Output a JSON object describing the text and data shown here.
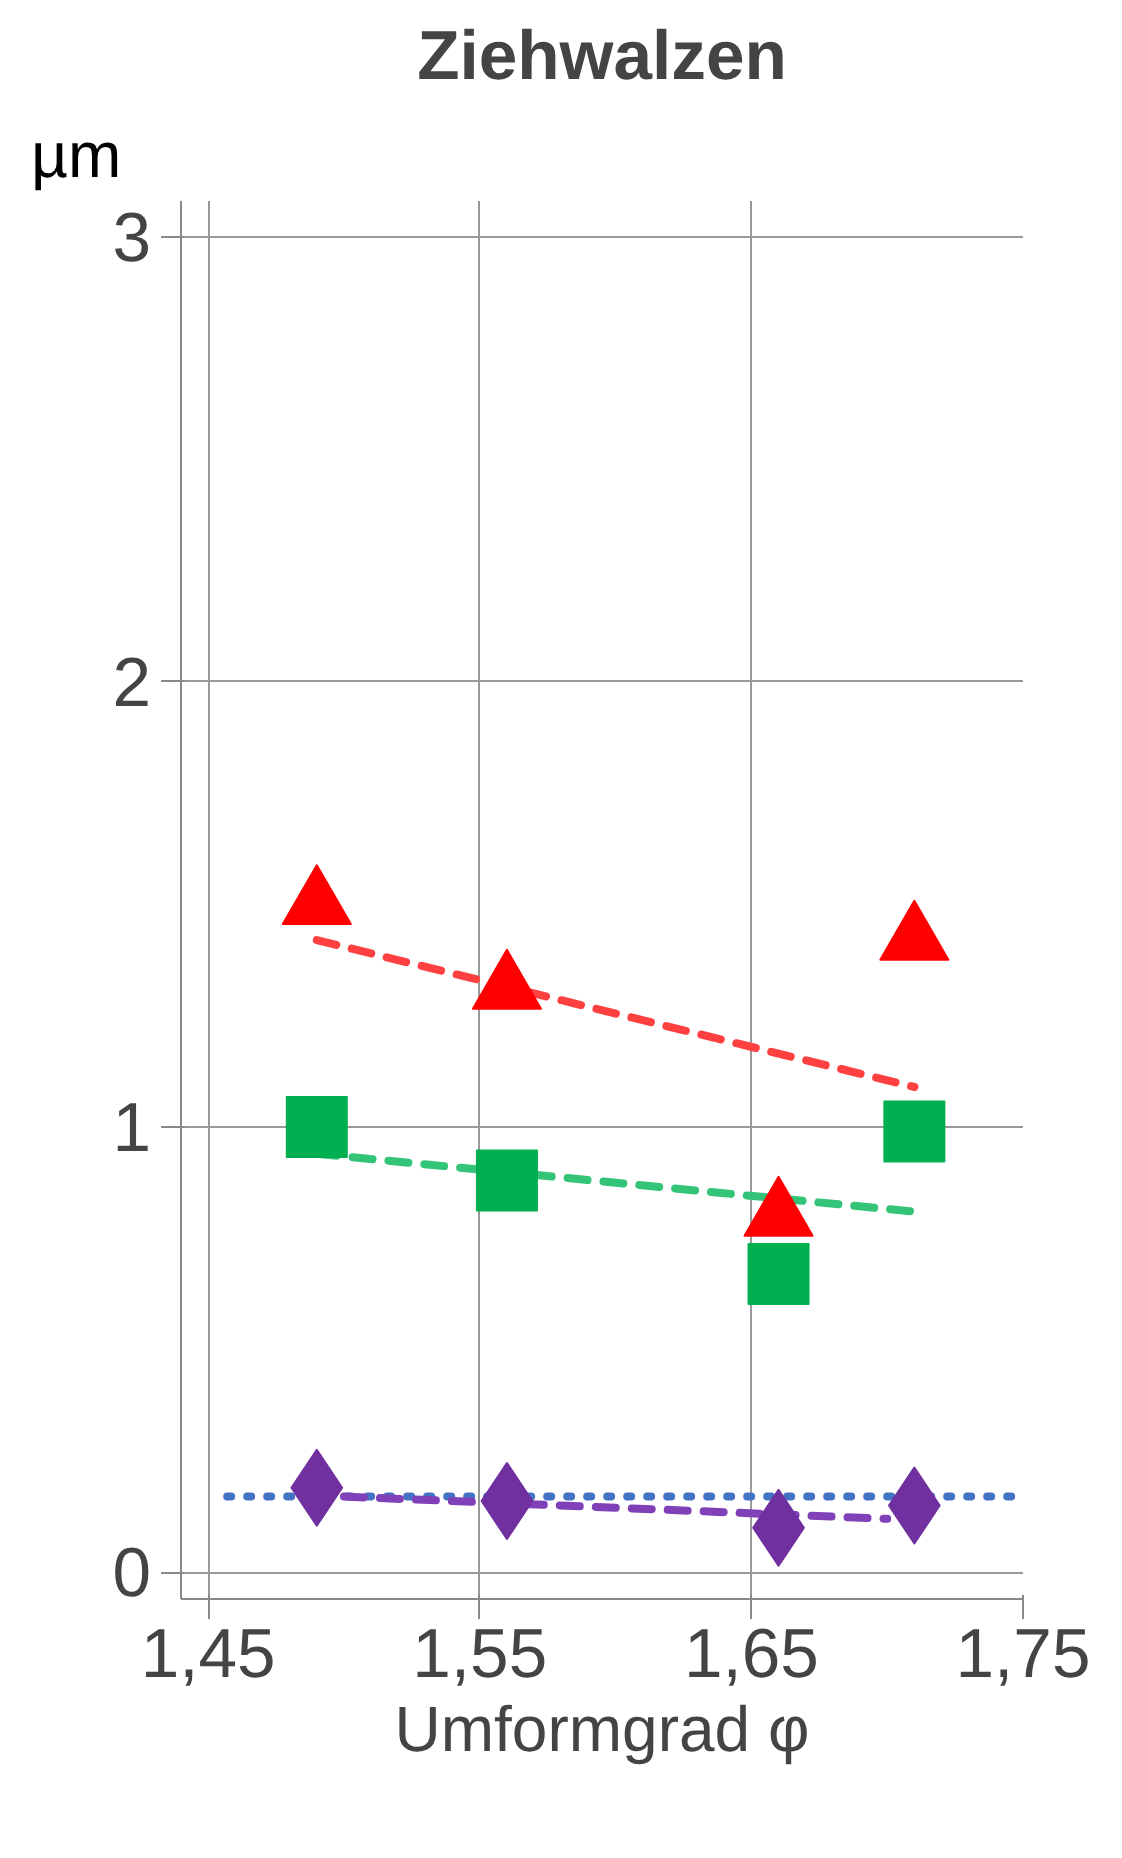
{
  "chart_data": {
    "type": "scatter",
    "title": "Ziehwalzen",
    "ylabel": "µm",
    "xlabel": "Umformgrad φ",
    "xlim": [
      1.44,
      1.75
    ],
    "ylim": [
      -0.06,
      3.08
    ],
    "xticks": [
      {
        "value": 1.45,
        "label": "1,45"
      },
      {
        "value": 1.55,
        "label": "1,55"
      },
      {
        "value": 1.65,
        "label": "1,65"
      },
      {
        "value": 1.75,
        "label": "1,75"
      }
    ],
    "yticks": [
      0,
      1,
      2,
      3
    ],
    "grid": true,
    "series": [
      {
        "type": "line",
        "line_style": "dotted",
        "marker": "none",
        "color": "#4472c4",
        "x": [
          1.457,
          1.75
        ],
        "values": [
          0.17,
          0.17
        ]
      },
      {
        "type": "line",
        "line_style": "dashed",
        "marker": "none",
        "color": "#ff4040",
        "x": [
          1.49,
          1.71
        ],
        "values": [
          1.42,
          1.09
        ]
      },
      {
        "type": "line",
        "line_style": "dashed",
        "marker": "none",
        "color": "#33c477",
        "x": [
          1.49,
          1.71
        ],
        "values": [
          0.94,
          0.81
        ]
      },
      {
        "type": "line",
        "line_style": "dashed",
        "marker": "none",
        "color": "#8040b8",
        "x": [
          1.5,
          1.7
        ],
        "values": [
          0.17,
          0.12
        ]
      },
      {
        "marker": "triangle",
        "color": "#ff0000",
        "x": [
          1.49,
          1.56,
          1.66,
          1.71
        ],
        "values": [
          1.5,
          1.31,
          0.8,
          1.42
        ]
      },
      {
        "marker": "square",
        "color": "#00b050",
        "x": [
          1.49,
          1.56,
          1.66,
          1.71
        ],
        "values": [
          1.0,
          0.88,
          0.67,
          0.99
        ]
      },
      {
        "marker": "diamond",
        "color": "#7030a0",
        "x": [
          1.49,
          1.56,
          1.66,
          1.71
        ],
        "values": [
          0.19,
          0.16,
          0.1,
          0.15
        ]
      }
    ]
  }
}
